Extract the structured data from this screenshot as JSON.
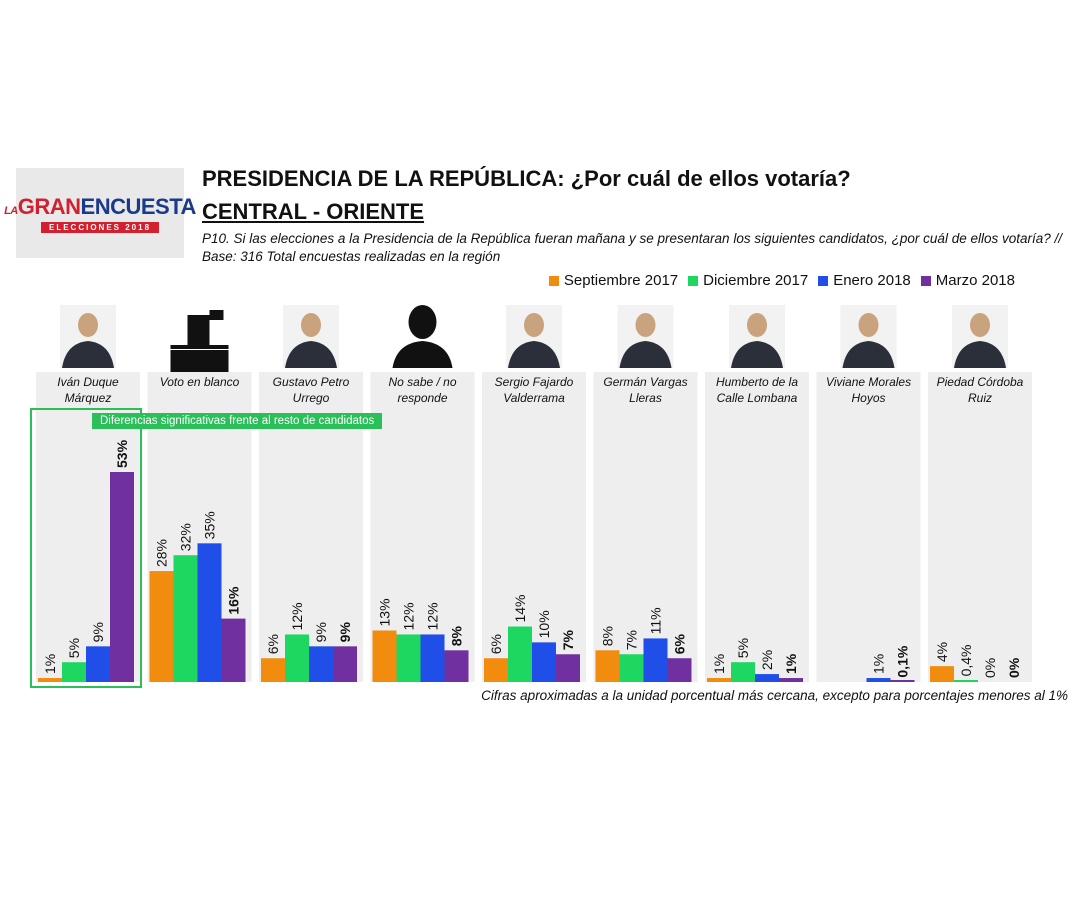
{
  "logo": {
    "text_part1": "LA",
    "text_part2": "GRAN",
    "text_part3": "ENCUESTA",
    "sub": "ELECCIONES 2018"
  },
  "header": {
    "title": "PRESIDENCIA DE LA REPÚBLICA: ¿Por cuál de ellos votaría?",
    "subtitle": "CENTRAL - ORIENTE",
    "question": "P10. Si las elecciones a la Presidencia de la República fueran mañana y se presentaran los siguientes candidatos, ¿por cuál de ellos votaría?  // Base: 316 Total encuestas realizadas en la región"
  },
  "significance_label": "Diferencias significativas frente al resto de candidatos",
  "footnote": "Cifras aproximadas a la unidad porcentual más cercana, excepto para porcentajes menores al 1%",
  "colors": {
    "Septiembre 2017": "#f28c0f",
    "Diciembre 2017": "#1ed760",
    "Enero 2018": "#1f4fe8",
    "Marzo 2018": "#7030a0"
  },
  "chart_data": {
    "type": "bar",
    "categories": [
      {
        "line1": "Iván Duque",
        "line2": "Márquez",
        "icon": "person-photo-icon"
      },
      {
        "line1": "Voto en blanco",
        "line2": "",
        "icon": "ballot-box-icon"
      },
      {
        "line1": "Gustavo Petro",
        "line2": "Urrego",
        "icon": "person-photo-icon"
      },
      {
        "line1": "No sabe / no",
        "line2": "responde",
        "icon": "silhouette-icon"
      },
      {
        "line1": "Sergio Fajardo",
        "line2": "Valderrama",
        "icon": "person-photo-icon"
      },
      {
        "line1": "Germán Vargas",
        "line2": "Lleras",
        "icon": "person-photo-icon"
      },
      {
        "line1": "Humberto de la",
        "line2": "Calle Lombana",
        "icon": "person-photo-icon"
      },
      {
        "line1": "Viviane Morales",
        "line2": "Hoyos",
        "icon": "person-photo-icon"
      },
      {
        "line1": "Piedad Córdoba",
        "line2": "Ruiz",
        "icon": "person-photo-icon"
      }
    ],
    "series": [
      {
        "name": "Septiembre 2017",
        "values": [
          1,
          28,
          6,
          13,
          6,
          8,
          1,
          null,
          4
        ],
        "labels": [
          "1%",
          "28%",
          "6%",
          "13%",
          "6%",
          "8%",
          "1%",
          "",
          "4%"
        ]
      },
      {
        "name": "Diciembre 2017",
        "values": [
          5,
          32,
          12,
          12,
          14,
          7,
          5,
          null,
          0.4
        ],
        "labels": [
          "5%",
          "32%",
          "12%",
          "12%",
          "14%",
          "7%",
          "5%",
          "",
          "0,4%"
        ]
      },
      {
        "name": "Enero 2018",
        "values": [
          9,
          35,
          9,
          12,
          10,
          11,
          2,
          1,
          0
        ],
        "labels": [
          "9%",
          "35%",
          "9%",
          "12%",
          "10%",
          "11%",
          "2%",
          "1%",
          "0%"
        ]
      },
      {
        "name": "Marzo 2018",
        "values": [
          53,
          16,
          9,
          8,
          7,
          6,
          1,
          0.1,
          0
        ],
        "labels": [
          "53%",
          "16%",
          "9%",
          "8%",
          "7%",
          "6%",
          "1%",
          "0,1%",
          "0%"
        ]
      }
    ],
    "bold_series": "Marzo 2018",
    "highlighted_category": "Iván Duque Márquez",
    "ylim": [
      0,
      60
    ],
    "legend_position": "top-right",
    "grid": false
  }
}
